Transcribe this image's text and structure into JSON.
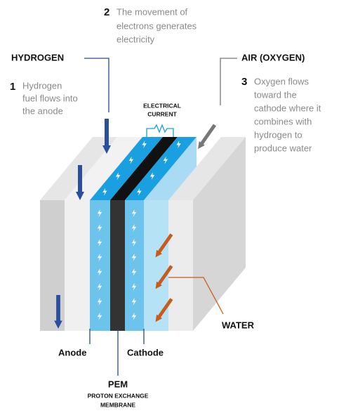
{
  "steps": [
    {
      "number": "1",
      "lines": [
        "Hydrogen",
        "fuel flows into",
        "the anode"
      ]
    },
    {
      "number": "2",
      "lines": [
        "The movement of",
        "electrons generates",
        "electricity"
      ]
    },
    {
      "number": "3",
      "lines": [
        "Oxygen flows",
        "toward the",
        "cathode where it",
        "combines with",
        "hydrogen to",
        "produce water"
      ]
    }
  ],
  "labels": {
    "hydrogen": "HYDROGEN",
    "air": "AIR (OXYGEN)",
    "electrical_current": [
      "ELECTRICAL",
      "CURRENT"
    ],
    "water": "WATER",
    "anode": "Anode",
    "cathode": "Cathode",
    "pem": "PEM",
    "pem_full": [
      "PROTON EXCHANGE",
      "MEMBRANE"
    ]
  }
}
